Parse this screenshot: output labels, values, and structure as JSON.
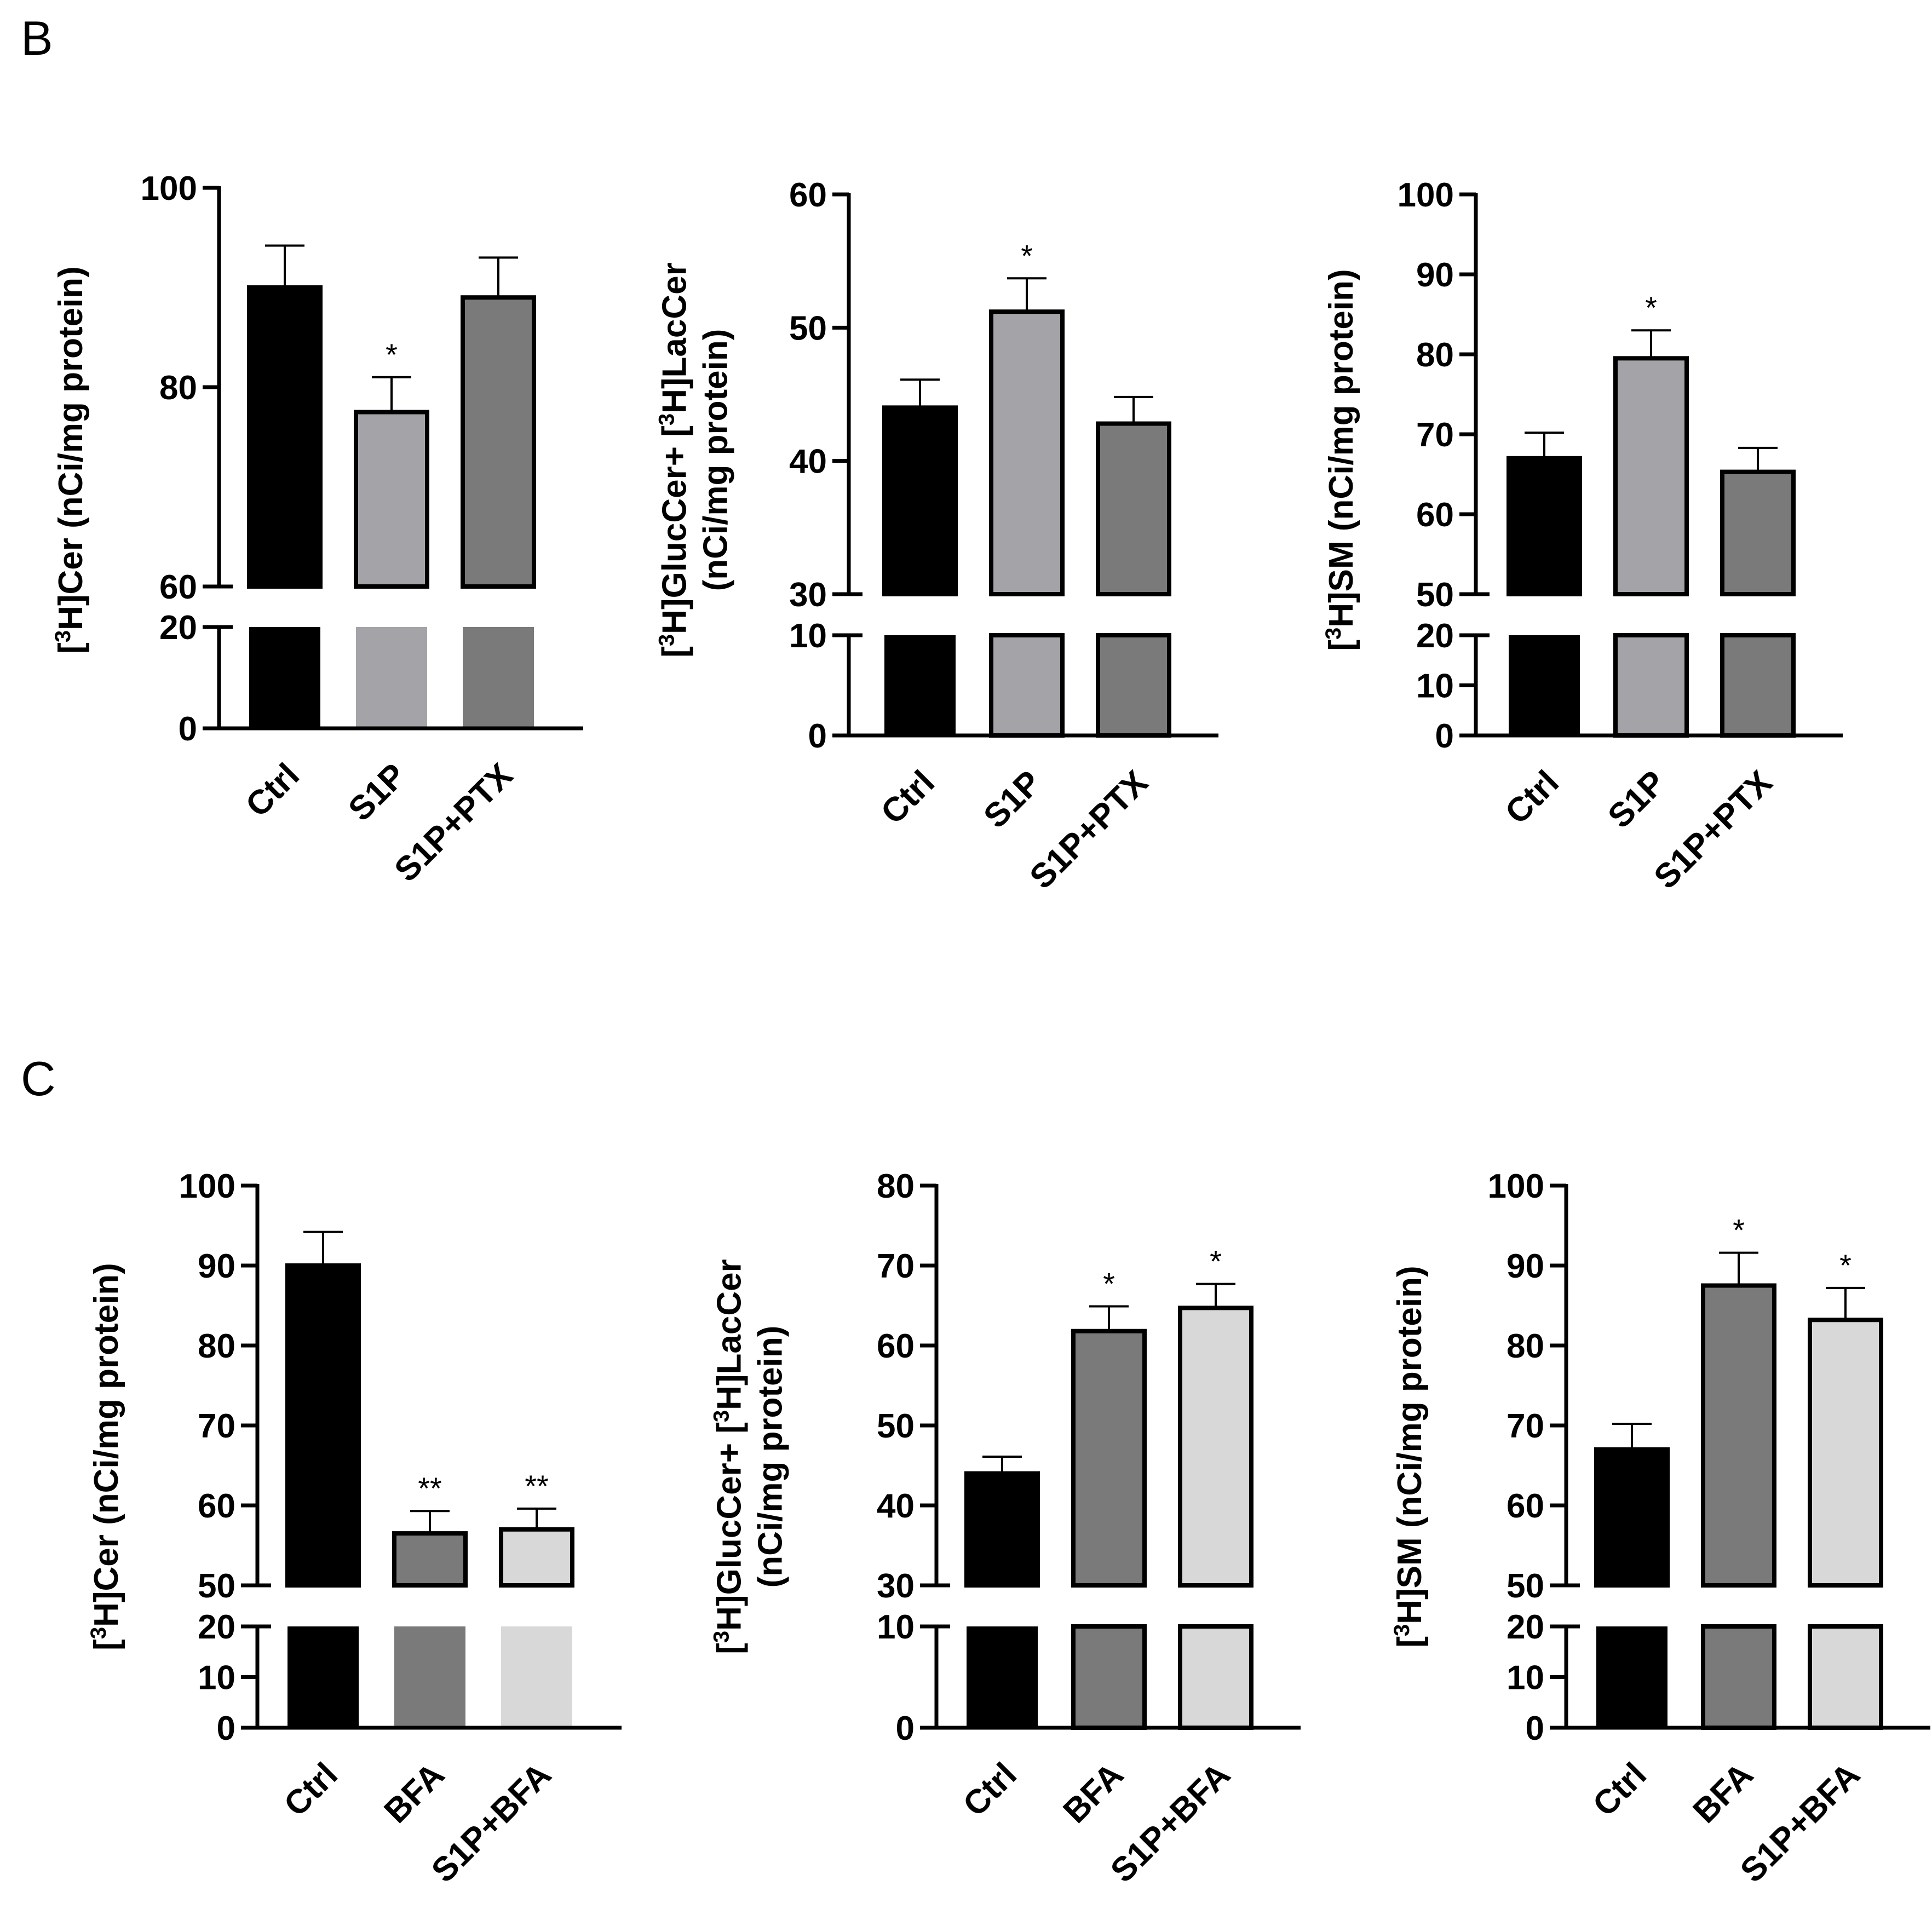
{
  "panels": [
    {
      "letter": "B"
    },
    {
      "letter": "C"
    }
  ],
  "chart_data": [
    {
      "type": "bar",
      "panel": "B",
      "ylabel_lines": [
        [
          {
            "t": "["
          },
          {
            "t": "3",
            "sup": true
          },
          {
            "t": "H]Cer  (nCi/mg protein)"
          }
        ]
      ],
      "categories": [
        "Ctrl",
        "S1P",
        "S1P+PTX"
      ],
      "values": [
        90,
        77.5,
        89
      ],
      "errors": [
        4.2,
        3.5,
        4
      ],
      "significance": [
        "",
        "*",
        ""
      ],
      "colors": [
        "#000000",
        "#a3a3a8",
        "#7a7a7a"
      ],
      "lower_range": [
        0,
        20
      ],
      "lower_ticks": [
        0,
        20
      ],
      "upper_range": [
        60,
        100
      ],
      "upper_ticks": [
        60,
        80,
        100
      ]
    },
    {
      "type": "bar",
      "panel": "B",
      "ylabel_lines": [
        [
          {
            "t": "["
          },
          {
            "t": "3",
            "sup": true
          },
          {
            "t": "H]GlucCer+ ["
          },
          {
            "t": "3",
            "sup": true
          },
          {
            "t": "H]LacCer"
          }
        ],
        [
          {
            "t": "(nCi/mg protein)"
          }
        ]
      ],
      "categories": [
        "Ctrl",
        "S1P",
        "S1P+PTX"
      ],
      "values": [
        44,
        51.2,
        42.8
      ],
      "errors": [
        2.1,
        2.5,
        2
      ],
      "significance": [
        "",
        "*",
        ""
      ],
      "colors": [
        "#000000",
        "#a3a3a8",
        "#7a7a7a"
      ],
      "lower_range": [
        0,
        10
      ],
      "lower_ticks": [
        0,
        10
      ],
      "upper_range": [
        30,
        60
      ],
      "upper_ticks": [
        30,
        40,
        50,
        60
      ]
    },
    {
      "type": "bar",
      "panel": "B",
      "ylabel_lines": [
        [
          {
            "t": "["
          },
          {
            "t": "3",
            "sup": true
          },
          {
            "t": "H]SM  (nCi/mg protein)"
          }
        ]
      ],
      "categories": [
        "Ctrl",
        "S1P",
        "S1P+PTX"
      ],
      "values": [
        67,
        79.5,
        65.3
      ],
      "errors": [
        3.2,
        3.5,
        3
      ],
      "significance": [
        "",
        "*",
        ""
      ],
      "colors": [
        "#000000",
        "#a3a3a8",
        "#7a7a7a"
      ],
      "lower_range": [
        0,
        20
      ],
      "lower_ticks": [
        0,
        10,
        20
      ],
      "upper_range": [
        50,
        100
      ],
      "upper_ticks": [
        50,
        60,
        70,
        80,
        90,
        100
      ]
    },
    {
      "type": "bar",
      "panel": "C",
      "ylabel_lines": [
        [
          {
            "t": "["
          },
          {
            "t": "3",
            "sup": true
          },
          {
            "t": "H]Cer  (nCi/mg protein)"
          }
        ]
      ],
      "categories": [
        "Ctrl",
        "BFA",
        "S1P+BFA"
      ],
      "values": [
        90,
        56.5,
        57
      ],
      "errors": [
        4.2,
        2.8,
        2.6
      ],
      "significance": [
        "",
        "**",
        "**"
      ],
      "colors": [
        "#000000",
        "#7a7a7a",
        "#d8d8d8"
      ],
      "lower_range": [
        0,
        20
      ],
      "lower_ticks": [
        0,
        10,
        20
      ],
      "upper_range": [
        50,
        100
      ],
      "upper_ticks": [
        50,
        60,
        70,
        80,
        90,
        100
      ]
    },
    {
      "type": "bar",
      "panel": "C",
      "ylabel_lines": [
        [
          {
            "t": "["
          },
          {
            "t": "3",
            "sup": true
          },
          {
            "t": "H]GlucCer+ ["
          },
          {
            "t": "3",
            "sup": true
          },
          {
            "t": "H]LacCer"
          }
        ],
        [
          {
            "t": "(nCi/mg protein)"
          }
        ]
      ],
      "categories": [
        "Ctrl",
        "BFA",
        "S1P+BFA"
      ],
      "values": [
        44,
        61.8,
        64.7
      ],
      "errors": [
        2.1,
        3.1,
        3
      ],
      "significance": [
        "",
        "*",
        "*"
      ],
      "colors": [
        "#000000",
        "#7a7a7a",
        "#d8d8d8"
      ],
      "lower_range": [
        0,
        10
      ],
      "lower_ticks": [
        0,
        10
      ],
      "upper_range": [
        30,
        80
      ],
      "upper_ticks": [
        30,
        40,
        50,
        60,
        70,
        80
      ]
    },
    {
      "type": "bar",
      "panel": "C",
      "ylabel_lines": [
        [
          {
            "t": "["
          },
          {
            "t": "3",
            "sup": true
          },
          {
            "t": "H]SM  (nCi/mg protein)"
          }
        ]
      ],
      "categories": [
        "Ctrl",
        "BFA",
        "S1P+BFA"
      ],
      "values": [
        67,
        87.5,
        83.2
      ],
      "errors": [
        3.2,
        4.1,
        4
      ],
      "significance": [
        "",
        "*",
        "*"
      ],
      "colors": [
        "#000000",
        "#7a7a7a",
        "#d8d8d8"
      ],
      "lower_range": [
        0,
        20
      ],
      "lower_ticks": [
        0,
        10,
        20
      ],
      "upper_range": [
        50,
        100
      ],
      "upper_ticks": [
        50,
        60,
        70,
        80,
        90,
        100
      ]
    }
  ]
}
